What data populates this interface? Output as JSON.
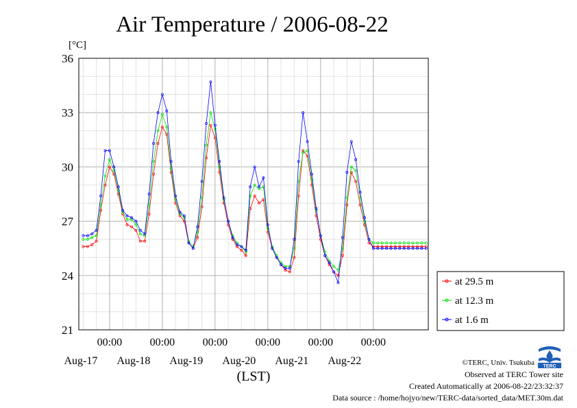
{
  "footer": {
    "logo_text": "TERC",
    "copyright": "©TERC, Univ. Tsukuba",
    "observed": "Observed at TERC Tower site",
    "created": "Created Automatically at 2006-08-22/23:32:37",
    "source": "Data source : /home/hojyo/new/TERC-data/sorted_data/MET.30m.dat"
  },
  "chart_data": {
    "type": "line",
    "title": "Air Temperature / 2006-08-22",
    "xlabel": "(LST)",
    "ylabel": "[°C]",
    "ylim": [
      21,
      36
    ],
    "yticks": [
      21,
      24,
      27,
      30,
      33,
      36
    ],
    "xlim_days": [
      "2006-08-16 12:00",
      "2006-08-22 24:00"
    ],
    "xticks": [
      {
        "label": "00:00",
        "day": "Aug-17",
        "t": "2006-08-17 00:00"
      },
      {
        "label": "00:00",
        "day": "Aug-18",
        "t": "2006-08-18 00:00"
      },
      {
        "label": "00:00",
        "day": "Aug-19",
        "t": "2006-08-19 00:00"
      },
      {
        "label": "00:00",
        "day": "Aug-20",
        "t": "2006-08-20 00:00"
      },
      {
        "label": "00:00",
        "day": "Aug-21",
        "t": "2006-08-21 00:00"
      },
      {
        "label": "00:00",
        "day": "Aug-22",
        "t": "2006-08-22 00:00"
      }
    ],
    "grid": true,
    "legend_position": "right",
    "x_hours": [
      0,
      2,
      4,
      6,
      8,
      10,
      12,
      14,
      16,
      18,
      20,
      22,
      24,
      26,
      28,
      30,
      32,
      34,
      36,
      38,
      40,
      42,
      44,
      46,
      48,
      50,
      52,
      54,
      56,
      58,
      60,
      62,
      64,
      66,
      68,
      70,
      72,
      74,
      76,
      78,
      80,
      82,
      84,
      86,
      88,
      90,
      92,
      94,
      96,
      98,
      100,
      102,
      104,
      106,
      108,
      110,
      112,
      114,
      116,
      118,
      120,
      122,
      124,
      126,
      128,
      130,
      132,
      134,
      136,
      138,
      140,
      142,
      144,
      146,
      148,
      150,
      152,
      154,
      156
    ],
    "series": [
      {
        "name": "at 29.5 m",
        "color": "#ff0000",
        "values": [
          25.6,
          25.6,
          25.7,
          25.9,
          27.6,
          29.0,
          30.0,
          29.6,
          28.5,
          27.4,
          26.8,
          26.7,
          26.5,
          25.9,
          25.9,
          27.4,
          29.6,
          31.3,
          32.2,
          31.8,
          29.7,
          28.0,
          27.3,
          27.0,
          25.8,
          25.5,
          26.1,
          27.8,
          30.5,
          32.3,
          31.6,
          29.7,
          28.0,
          26.8,
          26.0,
          25.6,
          25.4,
          25.1,
          27.7,
          28.4,
          28.0,
          28.2,
          26.4,
          25.5,
          25.0,
          24.6,
          24.3,
          24.2,
          25.0,
          28.4,
          30.9,
          30.6,
          29.0,
          27.3,
          26.0,
          25.1,
          24.6,
          24.2,
          24.0,
          25.1,
          27.9,
          29.7,
          29.2,
          27.9,
          26.8,
          25.8,
          25.6,
          25.6,
          25.6,
          25.6,
          25.6,
          25.6,
          25.6,
          25.6,
          25.6,
          25.6,
          25.6,
          25.6,
          25.6
        ]
      },
      {
        "name": "at 12.3 m",
        "color": "#00e000",
        "values": [
          26.0,
          26.0,
          26.1,
          26.2,
          27.9,
          29.5,
          30.4,
          29.8,
          28.7,
          27.5,
          27.1,
          27.1,
          26.8,
          26.3,
          26.2,
          27.9,
          30.3,
          32.0,
          32.9,
          32.2,
          29.9,
          28.2,
          27.4,
          27.2,
          25.9,
          25.6,
          26.4,
          28.3,
          31.2,
          33.0,
          32.1,
          30.0,
          28.2,
          27.0,
          26.2,
          25.8,
          25.6,
          25.3,
          28.4,
          29.0,
          28.8,
          28.9,
          26.6,
          25.6,
          25.1,
          24.7,
          24.5,
          24.5,
          25.5,
          29.2,
          30.8,
          30.9,
          29.3,
          27.6,
          26.2,
          25.3,
          24.8,
          24.5,
          24.3,
          25.5,
          28.3,
          30.0,
          29.8,
          28.3,
          27.0,
          26.0,
          25.8,
          25.8,
          25.8,
          25.8,
          25.8,
          25.8,
          25.8,
          25.8,
          25.8,
          25.8,
          25.8,
          25.8,
          25.8
        ]
      },
      {
        "name": "at 1.6 m",
        "color": "#0000ff",
        "values": [
          26.2,
          26.2,
          26.3,
          26.5,
          28.4,
          30.9,
          30.9,
          30.0,
          28.9,
          27.6,
          27.3,
          27.2,
          27.0,
          26.5,
          26.3,
          28.5,
          31.3,
          33.0,
          34.0,
          33.1,
          30.3,
          28.4,
          27.5,
          27.3,
          25.8,
          25.5,
          26.7,
          29.2,
          32.4,
          34.7,
          32.3,
          30.3,
          28.3,
          27.0,
          26.1,
          25.7,
          25.6,
          25.4,
          28.9,
          30.0,
          28.9,
          29.4,
          26.8,
          25.5,
          25.0,
          24.6,
          24.4,
          24.4,
          26.0,
          30.3,
          33.0,
          31.4,
          29.6,
          27.7,
          26.2,
          25.1,
          24.7,
          24.2,
          23.6,
          26.1,
          29.7,
          31.4,
          30.4,
          28.6,
          27.2,
          26.0,
          25.5,
          25.5,
          25.5,
          25.5,
          25.5,
          25.5,
          25.5,
          25.5,
          25.5,
          25.5,
          25.5,
          25.5,
          25.5
        ]
      }
    ]
  }
}
